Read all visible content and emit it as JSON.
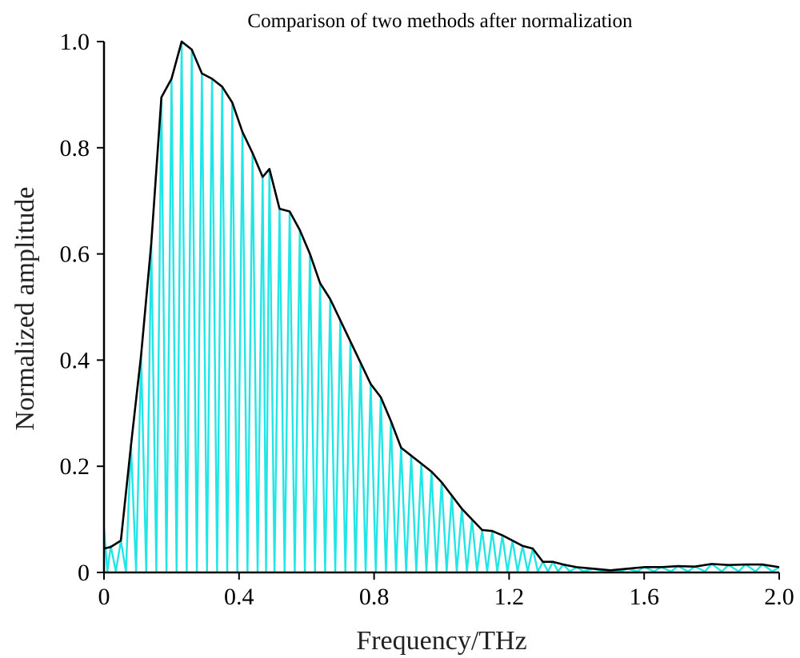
{
  "chart_data": {
    "type": "line",
    "title": "Comparison of two methods after normalization",
    "xlabel": "Frequency/THz",
    "ylabel": "Normalized amplitude",
    "xlim": [
      0,
      2.0
    ],
    "ylim": [
      0,
      1.0
    ],
    "xticks": [
      "0",
      "0.4",
      "0.8",
      "1.2",
      "1.6",
      "2.0"
    ],
    "xtick_values": [
      0,
      0.4,
      0.8,
      1.2,
      1.6,
      2.0
    ],
    "yticks": [
      "0",
      "0.2",
      "0.4",
      "0.6",
      "0.8",
      "1.0"
    ],
    "ytick_values": [
      0,
      0.2,
      0.4,
      0.6,
      0.8,
      1.0
    ],
    "grid": false,
    "legend": "none",
    "series": [
      {
        "color": "#000000",
        "style": "envelope",
        "x": [
          0,
          0.02,
          0.05,
          0.08,
          0.11,
          0.14,
          0.17,
          0.2,
          0.23,
          0.26,
          0.29,
          0.32,
          0.35,
          0.38,
          0.41,
          0.44,
          0.47,
          0.49,
          0.52,
          0.55,
          0.58,
          0.61,
          0.64,
          0.67,
          0.7,
          0.73,
          0.76,
          0.79,
          0.82,
          0.85,
          0.88,
          0.91,
          0.94,
          0.97,
          1.0,
          1.03,
          1.06,
          1.09,
          1.12,
          1.15,
          1.18,
          1.21,
          1.24,
          1.27,
          1.3,
          1.33,
          1.36,
          1.4,
          1.45,
          1.5,
          1.55,
          1.6,
          1.65,
          1.7,
          1.75,
          1.8,
          1.85,
          1.9,
          1.95,
          2.0
        ],
        "values": [
          0.045,
          0.048,
          0.06,
          0.24,
          0.41,
          0.62,
          0.895,
          0.93,
          1.0,
          0.985,
          0.94,
          0.93,
          0.915,
          0.885,
          0.83,
          0.79,
          0.745,
          0.76,
          0.685,
          0.68,
          0.645,
          0.6,
          0.545,
          0.515,
          0.475,
          0.435,
          0.395,
          0.355,
          0.33,
          0.285,
          0.235,
          0.22,
          0.205,
          0.19,
          0.17,
          0.145,
          0.12,
          0.1,
          0.08,
          0.078,
          0.07,
          0.06,
          0.05,
          0.045,
          0.02,
          0.02,
          0.015,
          0.01,
          0.007,
          0.004,
          0.007,
          0.01,
          0.01,
          0.012,
          0.011,
          0.016,
          0.014,
          0.015,
          0.015,
          0.01
        ]
      },
      {
        "color": "#22e5e5",
        "style": "oscillating",
        "x": [
          0,
          0.01,
          0.02,
          0.035,
          0.05,
          0.065,
          0.08,
          0.095,
          0.11,
          0.125,
          0.14,
          0.155,
          0.17,
          0.185,
          0.2,
          0.215,
          0.23,
          0.245,
          0.26,
          0.275,
          0.29,
          0.305,
          0.32,
          0.335,
          0.35,
          0.365,
          0.38,
          0.395,
          0.41,
          0.425,
          0.44,
          0.455,
          0.47,
          0.48,
          0.49,
          0.505,
          0.52,
          0.535,
          0.55,
          0.565,
          0.58,
          0.595,
          0.61,
          0.625,
          0.64,
          0.655,
          0.67,
          0.685,
          0.7,
          0.715,
          0.73,
          0.745,
          0.76,
          0.775,
          0.79,
          0.805,
          0.82,
          0.835,
          0.85,
          0.865,
          0.88,
          0.895,
          0.91,
          0.925,
          0.94,
          0.955,
          0.97,
          0.985,
          1.0,
          1.015,
          1.03,
          1.045,
          1.06,
          1.075,
          1.09,
          1.105,
          1.12,
          1.135,
          1.15,
          1.165,
          1.18,
          1.195,
          1.21,
          1.225,
          1.24,
          1.255,
          1.27,
          1.285,
          1.3,
          1.315,
          1.33,
          1.345,
          1.36,
          1.38,
          1.4,
          1.42,
          1.45,
          1.48,
          1.5,
          1.53,
          1.55,
          1.58,
          1.6,
          1.63,
          1.65,
          1.68,
          1.7,
          1.73,
          1.75,
          1.78,
          1.8,
          1.83,
          1.85,
          1.88,
          1.9,
          1.93,
          1.95,
          1.98,
          2.0
        ],
        "values": [
          0.085,
          0.002,
          0.05,
          0.002,
          0.06,
          0.002,
          0.24,
          0.002,
          0.41,
          0.002,
          0.62,
          0.002,
          0.895,
          0.002,
          0.93,
          0.002,
          1.0,
          0.002,
          0.985,
          0.002,
          0.94,
          0.002,
          0.93,
          0.002,
          0.915,
          0.002,
          0.885,
          0.002,
          0.83,
          0.002,
          0.79,
          0.002,
          0.745,
          0.002,
          0.76,
          0.002,
          0.685,
          0.002,
          0.68,
          0.002,
          0.645,
          0.002,
          0.6,
          0.002,
          0.545,
          0.002,
          0.515,
          0.002,
          0.475,
          0.002,
          0.435,
          0.002,
          0.395,
          0.002,
          0.355,
          0.002,
          0.33,
          0.002,
          0.285,
          0.002,
          0.235,
          0.002,
          0.22,
          0.002,
          0.205,
          0.002,
          0.19,
          0.002,
          0.17,
          0.002,
          0.145,
          0.002,
          0.12,
          0.002,
          0.1,
          0.002,
          0.08,
          0.002,
          0.078,
          0.002,
          0.07,
          0.002,
          0.06,
          0.002,
          0.05,
          0.002,
          0.045,
          0.002,
          0.02,
          0.002,
          0.02,
          0.002,
          0.015,
          0.002,
          0.01,
          0.002,
          0.007,
          0.002,
          0.004,
          0.002,
          0.007,
          0.002,
          0.01,
          0.002,
          0.01,
          0.002,
          0.012,
          0.002,
          0.011,
          0.002,
          0.016,
          0.002,
          0.014,
          0.002,
          0.015,
          0.002,
          0.015,
          0.002,
          0.01
        ]
      }
    ]
  }
}
